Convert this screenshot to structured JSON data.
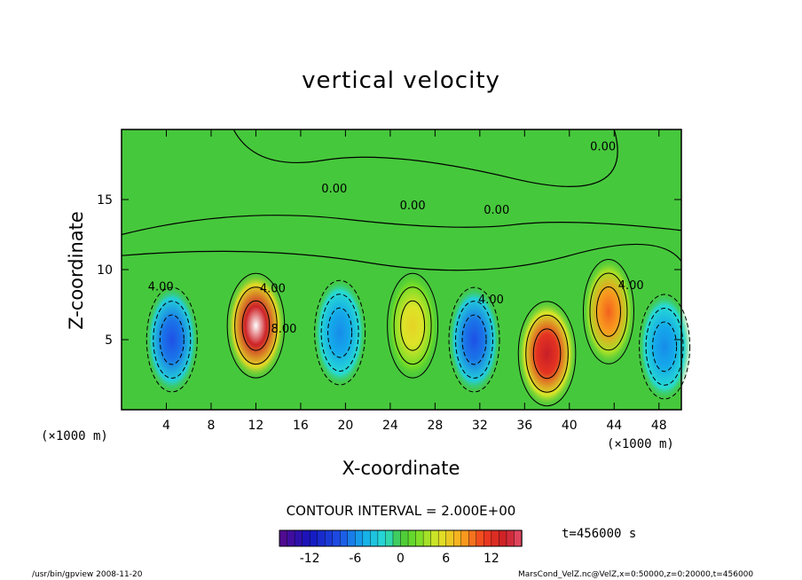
{
  "chart_data": {
    "type": "heatmap",
    "title": "vertical velocity",
    "xlabel": "X-coordinate",
    "ylabel": "Z-coordinate",
    "x_unit_label": "(×1000 m)",
    "z_unit_label": "(×1000 m)",
    "xlim": [
      0,
      50
    ],
    "ylim": [
      0,
      20
    ],
    "x_ticks": [
      4,
      8,
      12,
      16,
      20,
      24,
      28,
      32,
      36,
      40,
      44,
      48
    ],
    "y_ticks": [
      5,
      10,
      15
    ],
    "contour_interval_text": "CONTOUR INTERVAL = 2.000E+00",
    "contour_labels": [
      "0.00",
      "0.00",
      "4.00",
      "4.00",
      "4.00",
      "4.00",
      "0.00",
      "8.00",
      "0.00"
    ],
    "colorbar": {
      "min": -16,
      "max": 16,
      "ticks": [
        -12,
        -6,
        0,
        6,
        12
      ]
    },
    "cells": [
      {
        "x": 4.5,
        "z": 5.0,
        "value": -8
      },
      {
        "x": 12.0,
        "z": 6.0,
        "value": 16
      },
      {
        "x": 19.5,
        "z": 5.5,
        "value": -6
      },
      {
        "x": 26.0,
        "z": 6.0,
        "value": 6
      },
      {
        "x": 31.5,
        "z": 5.0,
        "value": -8
      },
      {
        "x": 38.0,
        "z": 4.0,
        "value": 14
      },
      {
        "x": 43.5,
        "z": 7.0,
        "value": 10
      },
      {
        "x": 48.5,
        "z": 4.5,
        "value": -6
      }
    ],
    "colors": {
      "neg_max": "#5a0a8a",
      "zero": "#46c83c",
      "pos_max": "#e8506e",
      "peak": "#ffffff"
    }
  },
  "time_text": "t=456000 s",
  "footer": {
    "left": "/usr/bin/gpview   2008-11-20",
    "right": "MarsCond_VelZ.nc@VelZ,x=0:50000,z=0:20000,t=456000"
  }
}
